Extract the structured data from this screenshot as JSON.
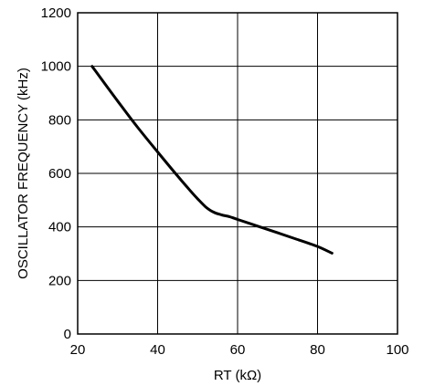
{
  "chart_data": {
    "type": "line",
    "title": "",
    "xlabel": "RT (kΩ)",
    "ylabel": "OSCILLATOR FREQUENCY (kHz)",
    "xlim": [
      20,
      100
    ],
    "ylim": [
      0,
      1200
    ],
    "x_ticks": [
      20,
      40,
      60,
      80,
      100
    ],
    "y_ticks": [
      0,
      200,
      400,
      600,
      800,
      1000,
      1200
    ],
    "grid": true,
    "legend": "none",
    "series": [
      {
        "x": [
          23.6,
          30,
          35,
          40,
          45,
          48,
          50,
          52,
          54,
          56,
          58,
          60,
          65,
          70,
          75,
          80,
          83.6
        ],
        "y": [
          1000,
          870,
          772,
          680,
          590,
          538,
          505,
          475,
          455,
          445,
          438,
          428,
          403,
          378,
          353,
          327,
          302
        ],
        "color": "#000000"
      }
    ]
  }
}
